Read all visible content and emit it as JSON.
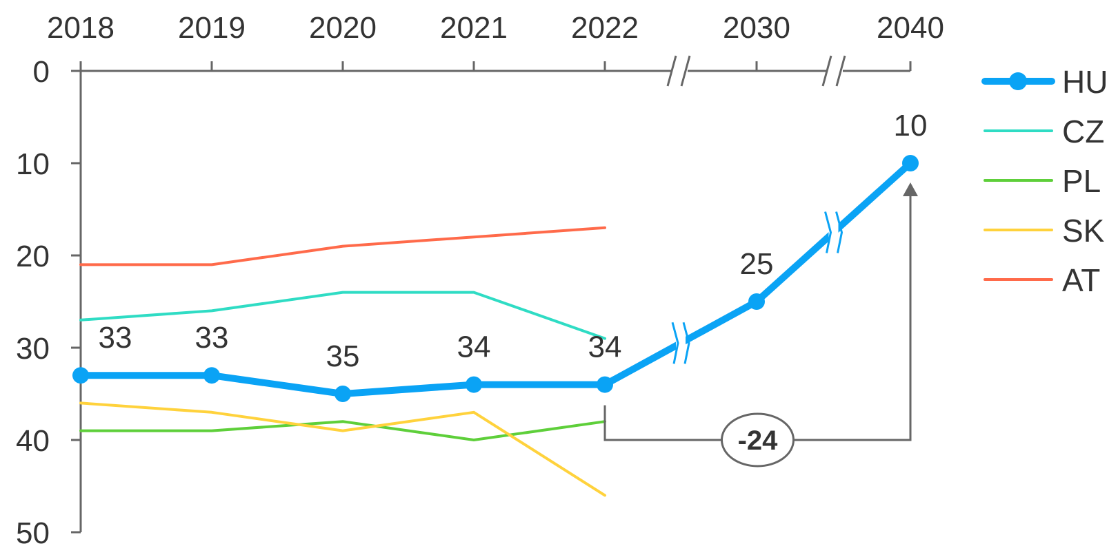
{
  "chart_data": {
    "type": "line",
    "x": [
      "2018",
      "2019",
      "2020",
      "2021",
      "2022",
      "2030",
      "2040"
    ],
    "x_axis_breaks": [
      "2022-2030",
      "2030-2040"
    ],
    "y_axis": {
      "range": [
        0,
        50
      ],
      "reversed": true,
      "ticks": [
        "0",
        "10",
        "20",
        "30",
        "40",
        "50"
      ]
    },
    "legend_position": "right",
    "series": [
      {
        "name": "HU",
        "color": "#0aa3f5",
        "markers": true,
        "values": [
          33,
          33,
          35,
          34,
          34,
          25,
          10
        ],
        "labels": [
          "33",
          "33",
          "35",
          "34",
          "34",
          "25",
          "10"
        ]
      },
      {
        "name": "CZ",
        "color": "#2fdcc4",
        "values": [
          27,
          26,
          24,
          24,
          29,
          null,
          null
        ]
      },
      {
        "name": "PL",
        "color": "#5ecf3a",
        "values": [
          39,
          39,
          38,
          40,
          38,
          null,
          null
        ]
      },
      {
        "name": "SK",
        "color": "#ffd23c",
        "values": [
          36,
          37,
          39,
          37,
          46,
          null,
          null
        ]
      },
      {
        "name": "AT",
        "color": "#ff6a4a",
        "values": [
          21,
          21,
          19,
          18,
          17,
          null,
          null
        ]
      }
    ],
    "annotations": [
      {
        "text": "-24",
        "from": "2022",
        "to": "2040",
        "series": "HU"
      }
    ]
  }
}
